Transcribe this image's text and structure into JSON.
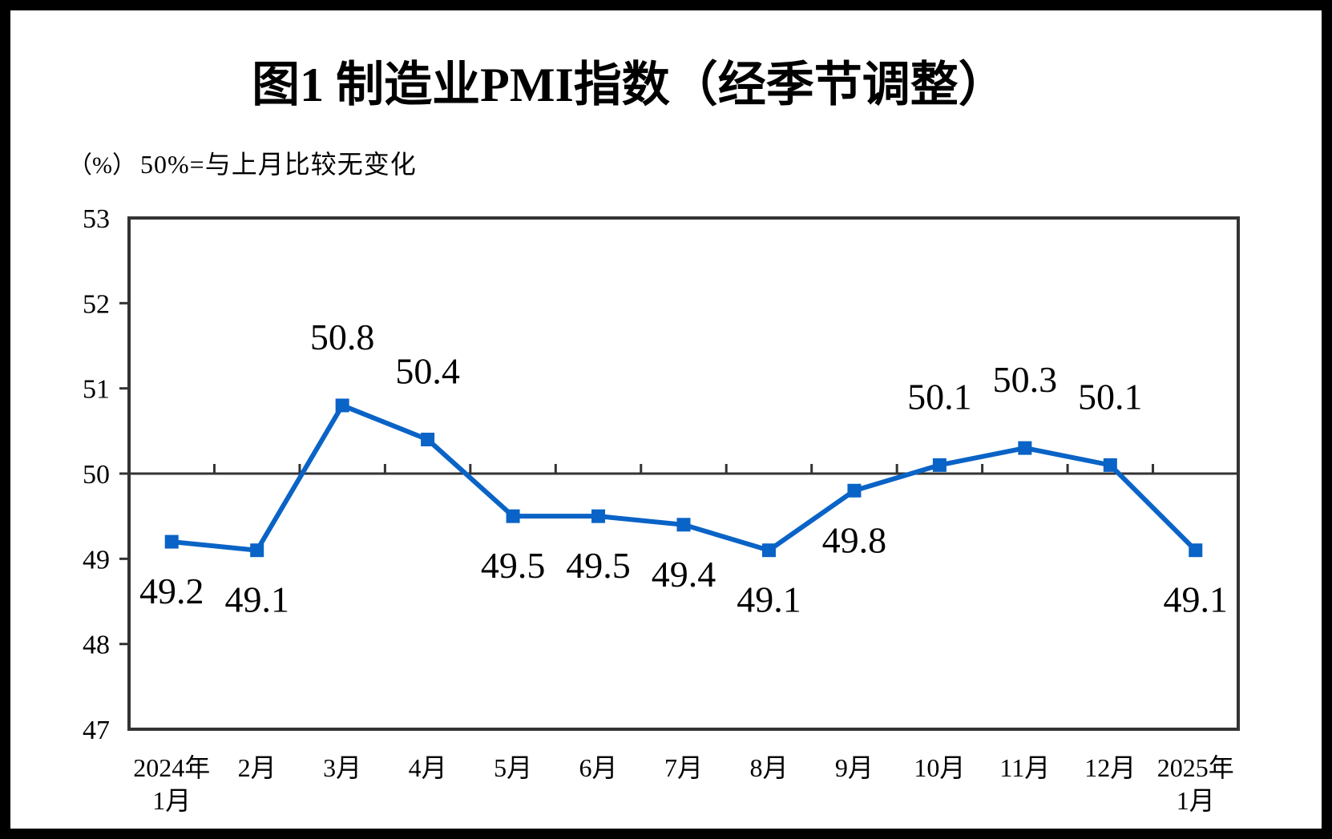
{
  "figure": {
    "title": "图1  制造业PMI指数（经季节调整）",
    "unit_label": "（%）",
    "note": "50%=与上月比较无变化"
  },
  "chart_data": {
    "type": "line",
    "title": "图1  制造业PMI指数（经季节调整）",
    "subtitle_note": "50%=与上月比较无变化",
    "y_unit": "（%）",
    "categories": [
      [
        "2024年",
        "1月"
      ],
      [
        "2月"
      ],
      [
        "3月"
      ],
      [
        "4月"
      ],
      [
        "5月"
      ],
      [
        "6月"
      ],
      [
        "7月"
      ],
      [
        "8月"
      ],
      [
        "9月"
      ],
      [
        "10月"
      ],
      [
        "11月"
      ],
      [
        "12月"
      ],
      [
        "2025年",
        "1月"
      ]
    ],
    "values": [
      49.2,
      49.1,
      50.8,
      50.4,
      49.5,
      49.5,
      49.4,
      49.1,
      49.8,
      50.1,
      50.3,
      50.1,
      49.1
    ],
    "data_labels": [
      "49.2",
      "49.1",
      "50.8",
      "50.4",
      "49.5",
      "49.5",
      "49.4",
      "49.1",
      "49.8",
      "50.1",
      "50.3",
      "50.1",
      "49.1"
    ],
    "label_positions": [
      "below",
      "below",
      "above",
      "above",
      "below",
      "below",
      "below",
      "below",
      "below",
      "above",
      "above",
      "above",
      "below"
    ],
    "ylim": [
      47,
      53
    ],
    "y_ticks": [
      53,
      52,
      51,
      50,
      49,
      48,
      47
    ],
    "reference_value": 50,
    "grid": false,
    "legend_position": "none",
    "marker": "square",
    "line_color": "#0A63C6",
    "axis_color": "#333333",
    "frame_color": "#000000"
  }
}
